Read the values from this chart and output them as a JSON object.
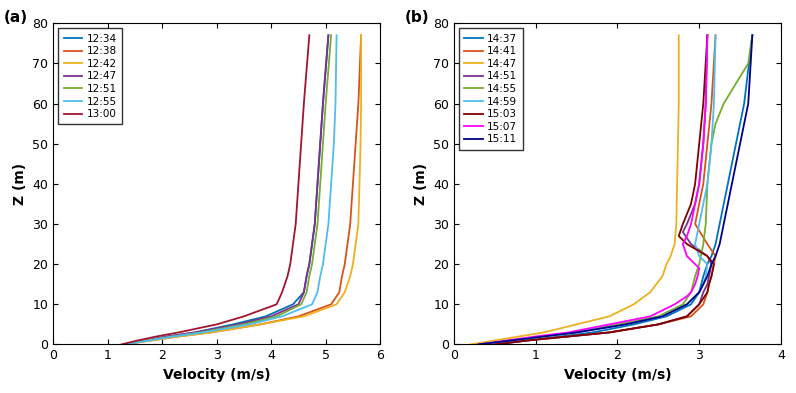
{
  "panel_a": {
    "label": "(a)",
    "xlabel": "Velocity (m/s)",
    "ylabel": "Z (m)",
    "xlim": [
      0,
      6
    ],
    "ylim": [
      0,
      80
    ],
    "xticks": [
      0,
      1,
      2,
      3,
      4,
      5,
      6
    ],
    "yticks": [
      0,
      10,
      20,
      30,
      40,
      50,
      60,
      70,
      80
    ],
    "series": [
      {
        "label": "12:34",
        "color": "#0072BD",
        "z": [
          0,
          1,
          2,
          3,
          5,
          7,
          10,
          13,
          17,
          20,
          25,
          30,
          40,
          50,
          60,
          77
        ],
        "velocity": [
          1.3,
          1.7,
          2.1,
          2.6,
          3.3,
          3.9,
          4.4,
          4.6,
          4.65,
          4.7,
          4.75,
          4.8,
          4.85,
          4.9,
          4.95,
          5.05
        ]
      },
      {
        "label": "12:38",
        "color": "#D95319",
        "z": [
          0,
          1,
          2,
          3,
          5,
          7,
          10,
          13,
          17,
          20,
          25,
          30,
          40,
          50,
          60,
          77
        ],
        "velocity": [
          1.3,
          1.8,
          2.3,
          2.9,
          3.8,
          4.5,
          5.1,
          5.25,
          5.3,
          5.35,
          5.4,
          5.45,
          5.5,
          5.55,
          5.6,
          5.65
        ]
      },
      {
        "label": "12:42",
        "color": "#EDB120",
        "z": [
          0,
          1,
          2,
          3,
          5,
          7,
          10,
          13,
          17,
          20,
          25,
          30,
          40,
          50,
          60,
          77
        ],
        "velocity": [
          1.3,
          1.8,
          2.3,
          2.9,
          3.8,
          4.6,
          5.2,
          5.35,
          5.45,
          5.5,
          5.55,
          5.6,
          5.62,
          5.64,
          5.65,
          5.65
        ]
      },
      {
        "label": "12:47",
        "color": "#7E2F8E",
        "z": [
          0,
          1,
          2,
          3,
          5,
          7,
          10,
          13,
          17,
          20,
          25,
          30,
          40,
          50,
          60,
          77
        ],
        "velocity": [
          1.3,
          1.7,
          2.1,
          2.6,
          3.4,
          4.0,
          4.5,
          4.6,
          4.65,
          4.7,
          4.75,
          4.8,
          4.85,
          4.9,
          4.95,
          5.05
        ]
      },
      {
        "label": "12:51",
        "color": "#77AC30",
        "z": [
          0,
          1,
          2,
          3,
          5,
          7,
          10,
          13,
          17,
          20,
          25,
          30,
          40,
          50,
          60,
          77
        ],
        "velocity": [
          1.3,
          1.7,
          2.2,
          2.7,
          3.5,
          4.1,
          4.55,
          4.65,
          4.7,
          4.75,
          4.8,
          4.85,
          4.9,
          4.95,
          5.0,
          5.1
        ]
      },
      {
        "label": "12:55",
        "color": "#4DBEEE",
        "z": [
          0,
          1,
          2,
          3,
          5,
          7,
          10,
          13,
          17,
          20,
          25,
          30,
          40,
          50,
          60,
          77
        ],
        "velocity": [
          1.3,
          1.75,
          2.2,
          2.75,
          3.6,
          4.2,
          4.75,
          4.85,
          4.9,
          4.95,
          5.0,
          5.05,
          5.1,
          5.15,
          5.18,
          5.2
        ]
      },
      {
        "label": "13:00",
        "color": "#A2142F",
        "z": [
          0,
          1,
          2,
          3,
          5,
          7,
          10,
          13,
          15,
          17,
          20,
          25,
          30,
          40,
          50,
          60,
          77
        ],
        "velocity": [
          1.25,
          1.55,
          1.9,
          2.3,
          3.0,
          3.5,
          4.1,
          4.2,
          4.25,
          4.3,
          4.35,
          4.4,
          4.45,
          4.5,
          4.55,
          4.6,
          4.7
        ]
      }
    ]
  },
  "panel_b": {
    "label": "(b)",
    "xlabel": "Velocity (m/s)",
    "ylabel": "Z (m)",
    "xlim": [
      0,
      4
    ],
    "ylim": [
      0,
      80
    ],
    "xticks": [
      0,
      1,
      2,
      3,
      4
    ],
    "yticks": [
      0,
      10,
      20,
      30,
      40,
      50,
      60,
      70,
      80
    ],
    "series": [
      {
        "label": "14:37",
        "color": "#0072BD",
        "z": [
          0,
          1,
          2,
          3,
          5,
          7,
          10,
          13,
          17,
          20,
          22,
          25,
          30,
          35,
          40,
          45,
          50,
          55,
          60,
          77
        ],
        "velocity": [
          0.5,
          0.9,
          1.3,
          1.7,
          2.2,
          2.6,
          2.9,
          3.0,
          3.05,
          3.1,
          3.15,
          3.2,
          3.25,
          3.3,
          3.35,
          3.4,
          3.45,
          3.5,
          3.55,
          3.65
        ]
      },
      {
        "label": "14:41",
        "color": "#D95319",
        "z": [
          0,
          1,
          2,
          3,
          5,
          7,
          10,
          13,
          15,
          17,
          20,
          22,
          25,
          30,
          35,
          40,
          50,
          60,
          77
        ],
        "velocity": [
          0.5,
          0.9,
          1.4,
          1.9,
          2.5,
          2.9,
          3.05,
          3.1,
          3.12,
          3.15,
          3.18,
          3.2,
          3.1,
          2.95,
          3.0,
          3.05,
          3.1,
          3.15,
          3.2
        ]
      },
      {
        "label": "14:47",
        "color": "#EDB120",
        "z": [
          0,
          1,
          2,
          3,
          5,
          7,
          10,
          13,
          17,
          20,
          22,
          25,
          30,
          40,
          50,
          60,
          77
        ],
        "velocity": [
          0.2,
          0.5,
          0.8,
          1.1,
          1.5,
          1.9,
          2.2,
          2.4,
          2.55,
          2.6,
          2.65,
          2.7,
          2.72,
          2.73,
          2.74,
          2.75,
          2.75
        ]
      },
      {
        "label": "14:51",
        "color": "#7E2F8E",
        "z": [
          0,
          1,
          2,
          3,
          5,
          7,
          10,
          13,
          15,
          17,
          20,
          22,
          25,
          28,
          30,
          35,
          40,
          50,
          60,
          77
        ],
        "velocity": [
          0.5,
          0.9,
          1.4,
          1.9,
          2.5,
          2.85,
          3.0,
          3.05,
          3.1,
          3.12,
          3.15,
          3.1,
          2.9,
          2.8,
          2.85,
          2.95,
          3.0,
          3.05,
          3.08,
          3.1
        ]
      },
      {
        "label": "14:55",
        "color": "#77AC30",
        "z": [
          0,
          1,
          2,
          3,
          5,
          7,
          10,
          13,
          17,
          20,
          22,
          25,
          30,
          40,
          50,
          55,
          60,
          70,
          77
        ],
        "velocity": [
          0.3,
          0.7,
          1.1,
          1.5,
          2.0,
          2.5,
          2.8,
          2.9,
          2.95,
          3.0,
          3.02,
          3.05,
          3.08,
          3.1,
          3.15,
          3.2,
          3.3,
          3.6,
          3.65
        ]
      },
      {
        "label": "14:59",
        "color": "#4DBEEE",
        "z": [
          0,
          1,
          2,
          3,
          5,
          7,
          10,
          12,
          13,
          15,
          17,
          20,
          22,
          25,
          30,
          35,
          40,
          50,
          60,
          77
        ],
        "velocity": [
          0.3,
          0.7,
          1.1,
          1.5,
          2.1,
          2.55,
          2.85,
          2.95,
          3.0,
          3.05,
          3.08,
          3.1,
          3.0,
          2.95,
          3.0,
          3.05,
          3.1,
          3.15,
          3.18,
          3.2
        ]
      },
      {
        "label": "15:03",
        "color": "#800000",
        "z": [
          0,
          1,
          2,
          3,
          5,
          7,
          10,
          13,
          15,
          17,
          20,
          22,
          25,
          27,
          30,
          35,
          40,
          50,
          60,
          77
        ],
        "velocity": [
          0.5,
          0.9,
          1.4,
          1.9,
          2.5,
          2.85,
          3.0,
          3.1,
          3.12,
          3.15,
          3.18,
          3.1,
          2.85,
          2.75,
          2.8,
          2.9,
          2.95,
          3.0,
          3.05,
          3.1
        ]
      },
      {
        "label": "15:07",
        "color": "#FF00FF",
        "z": [
          0,
          1,
          2,
          3,
          5,
          7,
          10,
          12,
          13,
          15,
          17,
          19,
          20,
          22,
          25,
          27,
          30,
          35,
          40,
          50,
          60,
          77
        ],
        "velocity": [
          0.3,
          0.65,
          1.0,
          1.4,
          1.9,
          2.4,
          2.7,
          2.85,
          2.9,
          2.95,
          2.98,
          3.0,
          2.95,
          2.85,
          2.8,
          2.85,
          2.9,
          2.95,
          3.0,
          3.05,
          3.08,
          3.1
        ]
      },
      {
        "label": "15:11",
        "color": "#00008B",
        "z": [
          0,
          1,
          2,
          3,
          5,
          7,
          10,
          13,
          17,
          20,
          22,
          25,
          30,
          35,
          40,
          45,
          50,
          55,
          60,
          77
        ],
        "velocity": [
          0.3,
          0.7,
          1.1,
          1.5,
          2.1,
          2.55,
          2.85,
          3.0,
          3.1,
          3.15,
          3.2,
          3.25,
          3.3,
          3.35,
          3.4,
          3.45,
          3.5,
          3.55,
          3.6,
          3.65
        ]
      }
    ]
  },
  "background_color": "#ffffff",
  "figsize": [
    7.96,
    3.93
  ],
  "dpi": 100
}
